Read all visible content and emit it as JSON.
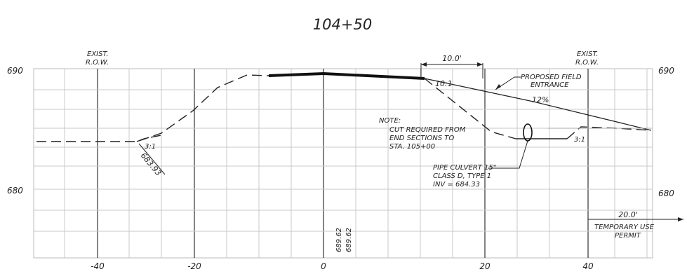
{
  "title": "104+50",
  "x_ticks": [
    "-40",
    "-20",
    "0",
    "20",
    "40"
  ],
  "y_left_ticks": [
    "690",
    "680"
  ],
  "y_right_ticks": [
    "690",
    "680"
  ],
  "labels": {
    "row_left_line1": "EXIST.",
    "row_left_line2": "R.O.W.",
    "row_right_line1": "EXIST.",
    "row_right_line2": "R.O.W.",
    "dim_top": "10.0'",
    "slope_top": "10:1",
    "proposed_line1": "PROPOSED FIELD",
    "proposed_line2": "ENTRANCE",
    "grade_pct": "12%",
    "note_line1": "NOTE:",
    "note_line2": "CUT REQUIRED FROM",
    "note_line3": "END SECTIONS TO",
    "note_line4": "STA. 105+00",
    "slope_left": "3:1",
    "slope_right": "3:1",
    "elev_left": "683.93",
    "pipe_line1": "PIPE CULVERT 15\"",
    "pipe_line2": "CLASS D, TYPE 1",
    "pipe_line3": "INV = 684.33",
    "elev_center_1": "689.62",
    "elev_center_2": "689.62",
    "dim_bottom": "20.0'",
    "temp_line1": "TEMPORARY USE",
    "temp_line2": "PERMIT"
  }
}
